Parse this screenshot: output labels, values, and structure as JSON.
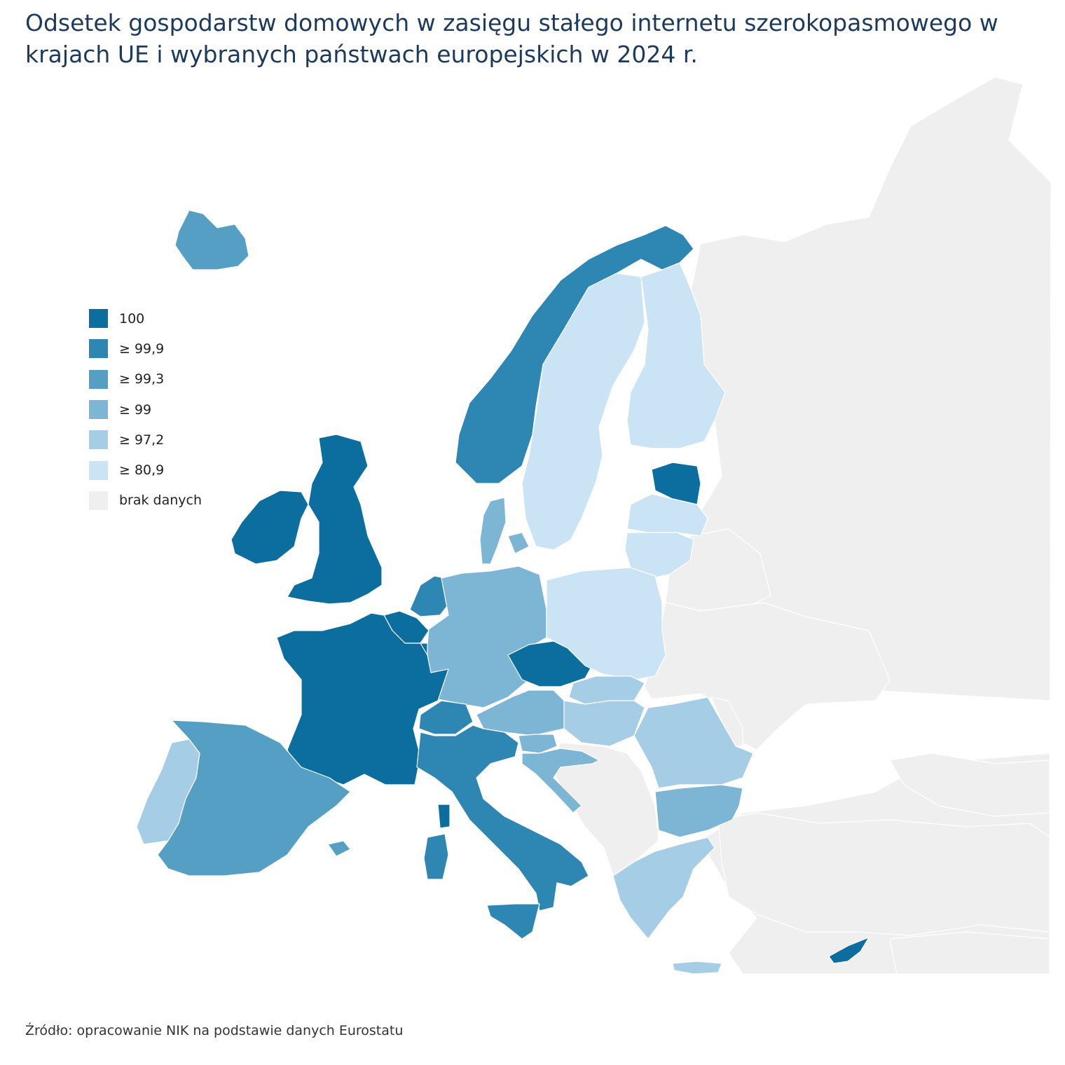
{
  "title": "Odsetek gospodarstw domowych w zasięgu stałego internetu szerokopasmowego w krajach UE i wybranych państwach europejskich w 2024 r.",
  "source": "Źródło: opracowanie NIK na podstawie danych Eurostatu",
  "legend": [
    {
      "label": "100",
      "color": "#0b6e9f"
    },
    {
      "label": "≥ 99,9",
      "color": "#2e87b2"
    },
    {
      "label": "≥ 99,3",
      "color": "#569fc4"
    },
    {
      "label": "≥ 99",
      "color": "#7db5d5"
    },
    {
      "label": "≥ 97,2",
      "color": "#a5cde5"
    },
    {
      "label": "≥ 80,9",
      "color": "#cbe4f5"
    },
    {
      "label": "brak danych",
      "color": "#efefef"
    }
  ],
  "map_colors": {
    "sea": "#ffffff",
    "border": "#ffffff",
    "no_data": "#efefef"
  },
  "regions": [
    {
      "id": "ireland",
      "cls": 0
    },
    {
      "id": "united-kingdom",
      "cls": 0
    },
    {
      "id": "france",
      "cls": 0
    },
    {
      "id": "belgium",
      "cls": 0
    },
    {
      "id": "luxembourg",
      "cls": 0
    },
    {
      "id": "czechia",
      "cls": 0
    },
    {
      "id": "estonia",
      "cls": 0
    },
    {
      "id": "corsica",
      "cls": 0
    },
    {
      "id": "cyprus",
      "cls": 0
    },
    {
      "id": "norway",
      "cls": 1
    },
    {
      "id": "netherlands",
      "cls": 1
    },
    {
      "id": "switzerland",
      "cls": 1
    },
    {
      "id": "italy",
      "cls": 1
    },
    {
      "id": "sicily",
      "cls": 1
    },
    {
      "id": "sardinia",
      "cls": 1
    },
    {
      "id": "iceland",
      "cls": 2
    },
    {
      "id": "spain",
      "cls": 2
    },
    {
      "id": "balearic-islands",
      "cls": 2
    },
    {
      "id": "germany",
      "cls": 3
    },
    {
      "id": "denmark",
      "cls": 3
    },
    {
      "id": "austria",
      "cls": 3
    },
    {
      "id": "slovenia",
      "cls": 3
    },
    {
      "id": "croatia",
      "cls": 3
    },
    {
      "id": "bulgaria",
      "cls": 3
    },
    {
      "id": "portugal",
      "cls": 4
    },
    {
      "id": "slovakia",
      "cls": 4
    },
    {
      "id": "hungary",
      "cls": 4
    },
    {
      "id": "romania",
      "cls": 4
    },
    {
      "id": "greece",
      "cls": 4
    },
    {
      "id": "crete",
      "cls": 4
    },
    {
      "id": "sweden",
      "cls": 5
    },
    {
      "id": "finland",
      "cls": 5
    },
    {
      "id": "latvia",
      "cls": 5
    },
    {
      "id": "lithuania",
      "cls": 5
    },
    {
      "id": "poland",
      "cls": 5
    },
    {
      "id": "russia",
      "cls": 6
    },
    {
      "id": "belarus",
      "cls": 6
    },
    {
      "id": "ukraine",
      "cls": 6
    },
    {
      "id": "moldova",
      "cls": 6
    },
    {
      "id": "turkey",
      "cls": 6
    },
    {
      "id": "western-balkans",
      "cls": 6
    },
    {
      "id": "caucasus",
      "cls": 6
    },
    {
      "id": "middle-east",
      "cls": 6
    }
  ]
}
